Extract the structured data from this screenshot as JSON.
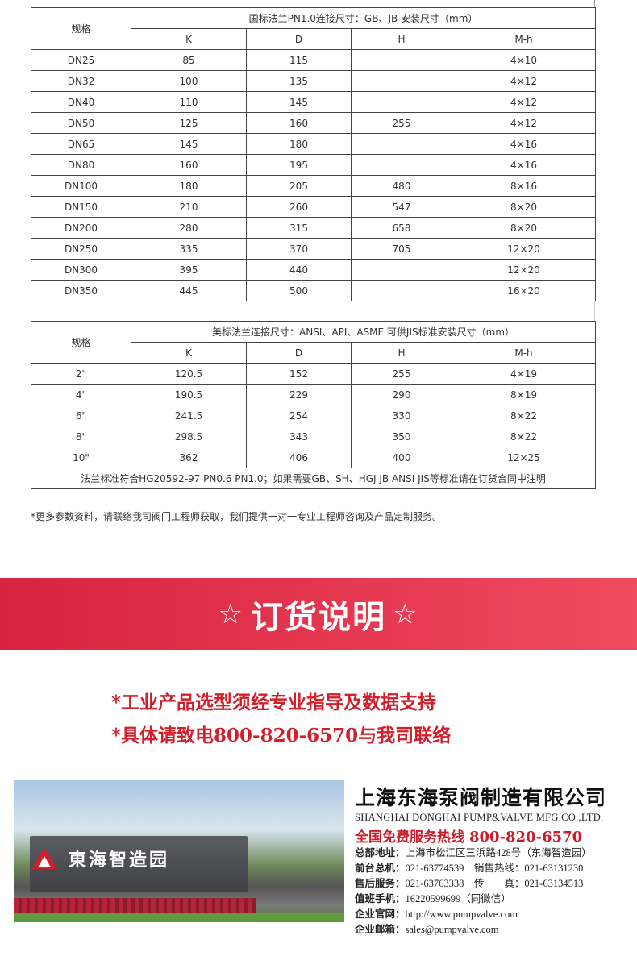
{
  "table1": {
    "spec_label": "规格",
    "title": "国标法兰PN1.0连接尺寸：GB、JB 安装尺寸（mm）",
    "columns": [
      "K",
      "D",
      "H",
      "M-h"
    ],
    "rows": [
      [
        "DN25",
        "85",
        "115",
        "",
        "4×10"
      ],
      [
        "DN32",
        "100",
        "135",
        "",
        "4×12"
      ],
      [
        "DN40",
        "110",
        "145",
        "",
        "4×12"
      ],
      [
        "DN50",
        "125",
        "160",
        "255",
        "4×12"
      ],
      [
        "DN65",
        "145",
        "180",
        "",
        "4×16"
      ],
      [
        "DN80",
        "160",
        "195",
        "",
        "4×16"
      ],
      [
        "DN100",
        "180",
        "205",
        "480",
        "8×16"
      ],
      [
        "DN150",
        "210",
        "260",
        "547",
        "8×20"
      ],
      [
        "DN200",
        "280",
        "315",
        "658",
        "8×20"
      ],
      [
        "DN250",
        "335",
        "370",
        "705",
        "12×20"
      ],
      [
        "DN300",
        "395",
        "440",
        "",
        "12×20"
      ],
      [
        "DN350",
        "445",
        "500",
        "",
        "16×20"
      ]
    ]
  },
  "table2": {
    "spec_label": "规格",
    "title": "美标法兰连接尺寸：ANSI、API、ASME 可供JIS标准安装尺寸（mm）",
    "columns": [
      "K",
      "D",
      "H",
      "M-h"
    ],
    "rows": [
      [
        "2\"",
        "120.5",
        "152",
        "255",
        "4×19"
      ],
      [
        "4\"",
        "190.5",
        "229",
        "290",
        "8×19"
      ],
      [
        "6\"",
        "241.5",
        "254",
        "330",
        "8×22"
      ],
      [
        "8\"",
        "298.5",
        "343",
        "350",
        "8×22"
      ],
      [
        "10\"",
        "362",
        "406",
        "400",
        "12×25"
      ]
    ],
    "footnote": "法兰标准符合HG20592-97 PN0.6 PN1.0；如果需要GB、SH、HGJ JB ANSI JIS等标准请在订货合同中注明"
  },
  "note": "*更多参数资料，请联络我司阀门工程师获取，我们提供一对一专业工程师咨询及产品定制服务。",
  "banner": {
    "star": "☆",
    "title": "订货说明",
    "color": "#e03249"
  },
  "order_lines": [
    "*工业产品选型须经专业指导及数据支持",
    "*具体请致电800-820-6570与我司联络"
  ],
  "photo": {
    "sign_text": "東海智造园"
  },
  "company": {
    "name_cn": "上海东海泵阀制造有限公司",
    "name_en": "SHANGHAI DONGHAI PUMP&VALVE MFG.CO.,LTD.",
    "hotline_label": "全国免费服务热线",
    "hotline": "800-820-6570",
    "lines": [
      {
        "label": "总部地址：",
        "value": "上海市松江区三浜路428号（东海智造园）"
      },
      {
        "label": "前台总机：",
        "value": "021-63774539　销售热线：021-63131230"
      },
      {
        "label": "售后服务：",
        "value": "021-63763338　传　　真：021-63134513"
      },
      {
        "label": "值班手机：",
        "value": "16220599699（同微信）"
      },
      {
        "label": "企业官网：",
        "value": "http://www.pumpvalve.com"
      },
      {
        "label": "企业邮箱：",
        "value": "sales@pumpvalve.com"
      }
    ],
    "accent": "#c81e2a"
  }
}
